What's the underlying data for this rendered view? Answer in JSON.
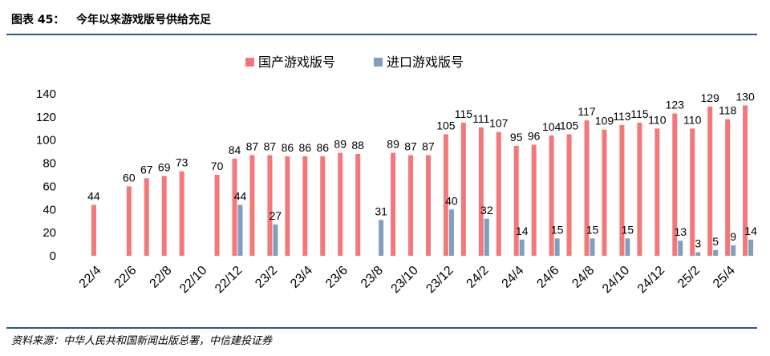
{
  "header": {
    "title": "图表 45：   今年以来游戏版号供给充足"
  },
  "footer": {
    "source": "资料来源：中华人民共和国新闻出版总署，中信建投证券"
  },
  "colors": {
    "domestic": "#f4777a",
    "imported": "#7f9fbf",
    "rule": "#2f5597"
  },
  "chart_data": {
    "type": "bar",
    "legend_position": "top-center",
    "ylim": [
      0,
      140
    ],
    "yticks": [
      0,
      20,
      40,
      60,
      80,
      100,
      120,
      140
    ],
    "categories": [
      "22/3",
      "22/4",
      "22/5",
      "22/6",
      "22/7",
      "22/8",
      "22/9",
      "22/10",
      "22/11",
      "22/12",
      "23/1",
      "23/2",
      "23/3",
      "23/4",
      "23/5",
      "23/6",
      "23/7",
      "23/8",
      "23/9",
      "23/10",
      "23/11",
      "23/12",
      "24/1",
      "24/2",
      "24/3",
      "24/4",
      "24/5",
      "24/6",
      "24/7",
      "24/8",
      "24/9",
      "24/10",
      "24/11",
      "24/12",
      "25/1",
      "25/2",
      "25/3",
      "25/4",
      "25/5"
    ],
    "xtick_labels": [
      "22/4",
      "22/6",
      "22/8",
      "22/10",
      "22/12",
      "23/2",
      "23/4",
      "23/6",
      "23/8",
      "23/10",
      "23/12",
      "24/2",
      "24/4",
      "24/6",
      "24/8",
      "24/10",
      "24/12",
      "25/2",
      "25/4"
    ],
    "series": [
      {
        "name": "国产游戏版号",
        "values": [
          null,
          44,
          null,
          60,
          67,
          69,
          73,
          null,
          70,
          84,
          87,
          87,
          86,
          86,
          86,
          89,
          88,
          null,
          89,
          87,
          87,
          105,
          115,
          111,
          107,
          95,
          96,
          104,
          105,
          117,
          109,
          113,
          115,
          110,
          123,
          110,
          129,
          118,
          130
        ]
      },
      {
        "name": "进口游戏版号",
        "values": [
          null,
          null,
          null,
          null,
          null,
          null,
          null,
          null,
          null,
          44,
          null,
          27,
          null,
          null,
          null,
          null,
          null,
          31,
          null,
          null,
          null,
          40,
          null,
          32,
          null,
          14,
          null,
          15,
          null,
          15,
          null,
          15,
          null,
          null,
          13,
          3,
          5,
          9,
          14
        ]
      }
    ]
  }
}
